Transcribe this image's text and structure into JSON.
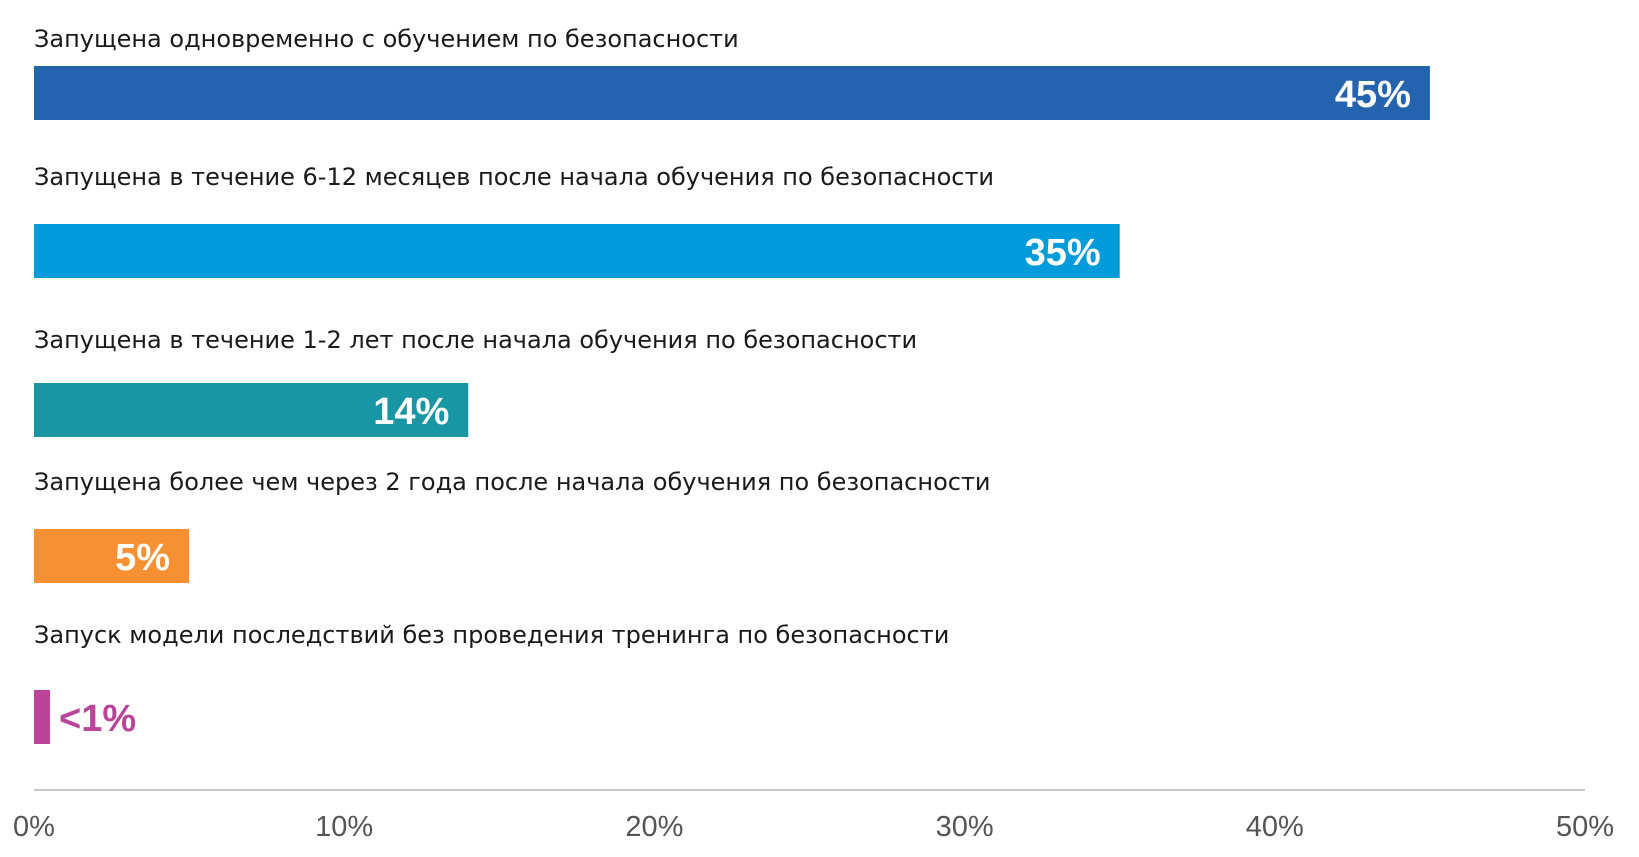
{
  "chart_data": {
    "type": "bar",
    "orientation": "horizontal",
    "categories": [
      "Запущена одновременно с обучением по безопасности",
      "Запущена в течение 6-12 месяцев после начала обучения по безопасности",
      "Запущена в течение 1-2 лет после начала обучения по безопасности",
      "Запущена более чем через 2 года после начала обучения по безопасности",
      "Запуск модели последствий без проведения тренинга по безопасности"
    ],
    "values": [
      45,
      35,
      14,
      5,
      0.5
    ],
    "value_labels": [
      "45%",
      "35%",
      "14%",
      "5%",
      "<1%"
    ],
    "colors": [
      "#2463ad",
      "#009bdb",
      "#1996a4",
      "#f69033",
      "#b9449a"
    ],
    "xlim": [
      0,
      50
    ],
    "x_ticks": [
      0,
      10,
      20,
      30,
      40,
      50
    ],
    "x_tick_labels": [
      "0%",
      "10%",
      "20%",
      "30%",
      "40%",
      "50%"
    ],
    "title": "",
    "xlabel": "",
    "ylabel": "",
    "grid": false,
    "legend": "none"
  }
}
